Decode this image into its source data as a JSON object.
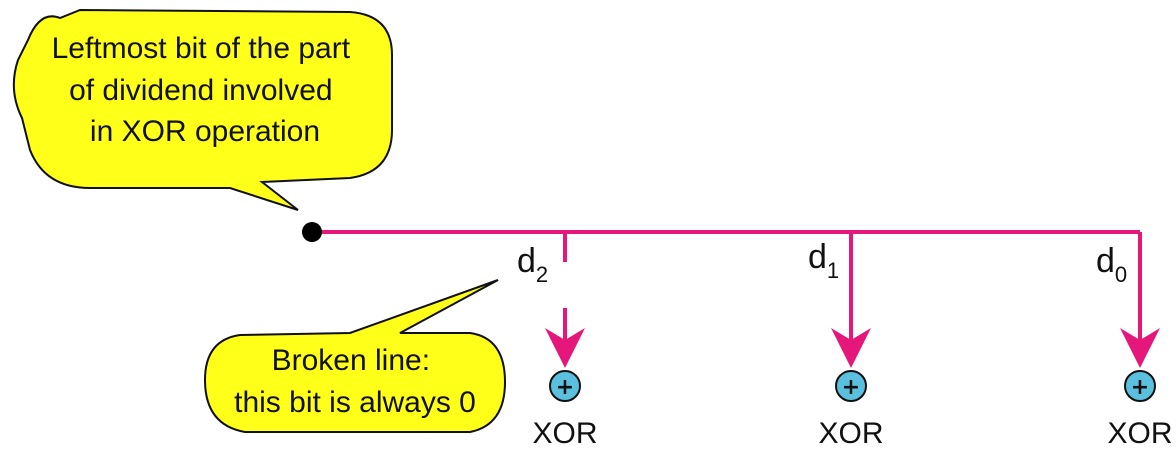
{
  "callouts": {
    "top": {
      "lines": [
        "Leftmost bit of the part",
        "of dividend involved",
        "in XOR operation"
      ]
    },
    "bottom": {
      "lines": [
        "Broken line:",
        "this bit is always 0"
      ]
    }
  },
  "bit_labels": [
    {
      "base": "d",
      "sub": "2"
    },
    {
      "base": "d",
      "sub": "1"
    },
    {
      "base": "d",
      "sub": "0"
    }
  ],
  "xor_label": "XOR",
  "xor_symbol": "+",
  "colors": {
    "line": "#e6177a",
    "callout_fill": "#ffff1a",
    "xor_fill": "#5bc0de",
    "text": "#111111"
  }
}
